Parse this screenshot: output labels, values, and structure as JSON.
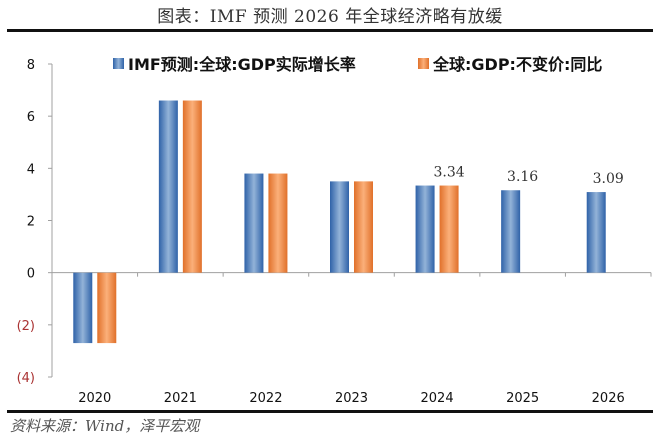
{
  "header": {
    "title": "图表：IMF 预测 2026 年全球经济略有放缓"
  },
  "footer": {
    "source": "资料来源：Wind，泽平宏观"
  },
  "chart_data": {
    "type": "bar",
    "title": "图表：IMF 预测 2026 年全球经济略有放缓",
    "xlabel": "",
    "ylabel": "",
    "categories": [
      "2020",
      "2021",
      "2022",
      "2023",
      "2024",
      "2025",
      "2026"
    ],
    "series": [
      {
        "name": "IMF预测:全球:GDP实际增长率",
        "color": "#4a7fc1",
        "values": [
          -2.7,
          6.6,
          3.8,
          3.5,
          3.34,
          3.16,
          3.09
        ]
      },
      {
        "name": "全球:GDP:不变价:同比",
        "color": "#f0924a",
        "values": [
          -2.7,
          6.6,
          3.8,
          3.5,
          3.34,
          null,
          null
        ]
      }
    ],
    "ylim": [
      -4,
      8
    ],
    "yticks": [
      8,
      6,
      4,
      2,
      0,
      -2,
      -4
    ],
    "ytick_labels": [
      "8",
      "6",
      "4",
      "2",
      "0",
      "(2)",
      "(4)"
    ],
    "data_labels": [
      {
        "category": "2024",
        "text": "3.34"
      },
      {
        "category": "2025",
        "text": "3.16"
      },
      {
        "category": "2026",
        "text": "3.09"
      }
    ],
    "legend_position": "top",
    "grid": false
  }
}
